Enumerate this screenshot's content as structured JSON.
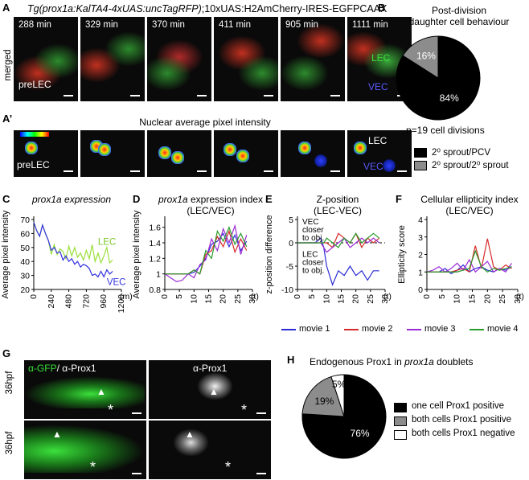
{
  "panelA": {
    "letter": "A",
    "title": "Tg(prox1a:KalTA4-4xUAS:uncTagRFP);10xUAS:H2AmCherry-IRES-EGFPCAAX",
    "title_italic_part": "Tg(prox1a:KalTA4-4xUAS:uncTagRFP)",
    "title_rest": ";10xUAS:H2AmCherry-IRES-EGFPCAAX",
    "row_label": "merged",
    "frames": [
      "288 min",
      "329 min",
      "370 min",
      "411 min",
      "905 min",
      "1111 min"
    ],
    "pre_label": "preLEC",
    "lec_label": "LEC",
    "vec_label": "VEC"
  },
  "panelA2": {
    "letter": "A’",
    "title": "Nuclear average pixel intensity",
    "pre_label": "preLEC",
    "lec_label": "LEC",
    "vec_label": "VEC"
  },
  "panelB": {
    "letter": "B",
    "title_line1": "Post-division",
    "title_line2": "daughter cell behaviour",
    "n_label": "n=19 cell divisions",
    "legend1": "2⁰ sprout/PCV",
    "legend2": "2⁰ sprout/2⁰ sprout",
    "color1": "#000000",
    "color2": "#8c8c8c"
  },
  "panelC": {
    "letter": "C",
    "title": "prox1a expression",
    "ylabel": "Average pixel intensity",
    "unit": "(m)",
    "lec": "LEC",
    "vec": "VEC"
  },
  "panelD": {
    "letter": "D",
    "title_italic": "prox1a",
    "title_rest": " expression index",
    "subtitle": "(LEC/VEC)",
    "ylabel": "Average pixel intensity",
    "unit": "(t)"
  },
  "panelE": {
    "letter": "E",
    "title": "Z-position",
    "subtitle": "(LEC-VEC)",
    "ylabel": "z-position difference",
    "unit": "(t)",
    "ann1_l1": "VEC",
    "ann1_l2": "closer",
    "ann1_l3": "to obj.",
    "ann2_l1": "LEC",
    "ann2_l2": "closer",
    "ann2_l3": "to obj."
  },
  "panelF": {
    "letter": "F",
    "title": "Cellular ellipticity index",
    "subtitle": "(LEC/VEC)",
    "ylabel": "Ellipticity score",
    "unit": "(t)"
  },
  "movie_legend": [
    "movie 1",
    "movie 2",
    "movie 3",
    "movie 4"
  ],
  "movie_colors": [
    "#2b2bd6",
    "#d62b2b",
    "#9b2bd6",
    "#2b9b2b"
  ],
  "panelG": {
    "letter": "G",
    "label_gfp": "α-GFP",
    "label_sep": "/ α-Prox1",
    "label_prox": "α-Prox1",
    "row_label": "36hpf",
    "star": "*",
    "arrow": "▲"
  },
  "panelH": {
    "letter": "H",
    "title_pre": "Endogenous Prox1 in ",
    "title_italic": "prox1a",
    "title_post": " doublets",
    "legend1": "one cell Prox1 positive",
    "legend2": "both cells Prox1 positive",
    "legend3": "both cells Prox1 negative"
  },
  "chart_data": [
    {
      "id": "B",
      "type": "pie",
      "categories": [
        "2⁰ sprout/PCV",
        "2⁰ sprout/2⁰ sprout"
      ],
      "values": [
        84,
        16
      ],
      "labels": [
        "84%",
        "16%"
      ]
    },
    {
      "id": "C",
      "type": "line",
      "title": "prox1a expression",
      "ylabel": "Average pixel intensity",
      "xlabel": "(m)",
      "xlim": [
        0,
        1200
      ],
      "ylim": [
        20,
        70
      ],
      "xticks": [
        0,
        240,
        480,
        720,
        960,
        1200
      ],
      "yticks": [
        20,
        30,
        40,
        50,
        60,
        70
      ],
      "x": [
        0,
        40,
        80,
        120,
        160,
        200,
        240,
        280,
        320,
        360,
        400,
        440,
        480,
        520,
        560,
        600,
        640,
        680,
        720,
        760,
        800,
        840,
        880,
        920,
        960,
        1000,
        1040,
        1080
      ],
      "series": [
        {
          "name": "LEC",
          "values": [
            68,
            62,
            58,
            66,
            60,
            55,
            45,
            52,
            45,
            49,
            47,
            42,
            51,
            44,
            50,
            43,
            46,
            41,
            48,
            42,
            52,
            40,
            46,
            39,
            44,
            50,
            39,
            41
          ]
        },
        {
          "name": "VEC",
          "values": [
            68,
            62,
            58,
            66,
            60,
            55,
            48,
            50,
            46,
            47,
            41,
            44,
            40,
            42,
            38,
            40,
            36,
            38,
            37,
            35,
            30,
            31,
            29,
            33,
            29,
            34,
            31,
            33
          ]
        }
      ]
    },
    {
      "id": "D",
      "type": "line",
      "title": "prox1a expression index (LEC/VEC)",
      "ylabel": "Average pixel intensity",
      "xlabel": "(t)",
      "xlim": [
        0,
        30
      ],
      "ylim": [
        0.8,
        1.7
      ],
      "xticks": [
        0,
        5,
        10,
        15,
        20,
        25,
        30
      ],
      "yticks": [
        0.8,
        1.0,
        1.2,
        1.4,
        1.6
      ],
      "series": [
        {
          "name": "movie 1",
          "x": [
            0,
            2,
            4,
            6,
            8,
            10,
            12,
            14,
            16,
            18,
            20,
            22,
            24,
            26,
            28
          ],
          "values": [
            1,
            1,
            1,
            1,
            1,
            1.02,
            1.1,
            1.2,
            1.38,
            1.42,
            1.52,
            1.35,
            1.5,
            1.3,
            1.42
          ]
        },
        {
          "name": "movie 2",
          "x": [
            0,
            2,
            4,
            6,
            8,
            10,
            12,
            14,
            16,
            18,
            20,
            22,
            24,
            26,
            28
          ],
          "values": [
            1,
            1,
            1,
            1,
            1,
            1.05,
            1.0,
            1.25,
            1.3,
            1.48,
            1.35,
            1.55,
            1.28,
            1.45,
            1.3
          ]
        },
        {
          "name": "movie 3",
          "x": [
            0,
            2,
            4,
            6,
            8,
            10,
            12,
            14,
            16,
            18,
            20,
            22,
            24,
            26,
            28
          ],
          "values": [
            1,
            0.95,
            0.9,
            0.92,
            1.0,
            0.95,
            1.12,
            1.18,
            1.45,
            1.3,
            1.58,
            1.4,
            1.62,
            1.25,
            1.5
          ]
        },
        {
          "name": "movie 4",
          "x": [
            0,
            2,
            4,
            6,
            8,
            10,
            12,
            14,
            16,
            18,
            20,
            22,
            24,
            26,
            28
          ],
          "values": [
            1,
            1,
            1,
            1,
            1,
            1.05,
            1.0,
            1.3,
            1.2,
            1.55,
            1.42,
            1.6,
            1.38,
            1.52,
            1.35
          ]
        }
      ]
    },
    {
      "id": "E",
      "type": "line",
      "title": "Z-position (LEC-VEC)",
      "ylabel": "z-position difference",
      "xlabel": "(t)",
      "xlim": [
        0,
        30
      ],
      "ylim": [
        -10,
        5
      ],
      "xticks": [
        0,
        5,
        10,
        15,
        20,
        25,
        30
      ],
      "yticks": [
        -10,
        -5,
        0,
        5
      ],
      "series": [
        {
          "name": "movie 1",
          "x": [
            0,
            2,
            4,
            6,
            8,
            9,
            10,
            12,
            14,
            16,
            18,
            20,
            22,
            24,
            26,
            28
          ],
          "values": [
            0,
            0,
            0,
            0,
            1,
            -1,
            -5,
            -9,
            -6,
            -7,
            -5,
            -7,
            -6,
            -8,
            -6,
            -6
          ]
        },
        {
          "name": "movie 2",
          "x": [
            0,
            2,
            4,
            6,
            8,
            9,
            10,
            12,
            14,
            16,
            18,
            20,
            22,
            24,
            26,
            28
          ],
          "values": [
            0,
            0,
            0,
            0,
            0,
            0,
            0,
            -1,
            2,
            1,
            0,
            2,
            -1,
            1,
            0,
            1
          ]
        },
        {
          "name": "movie 3",
          "x": [
            0,
            2,
            4,
            6,
            8,
            9,
            10,
            12,
            14,
            16,
            18,
            20,
            22,
            24,
            26,
            28
          ],
          "values": [
            0,
            0,
            0,
            0,
            0,
            -1,
            -2,
            -1,
            0,
            1,
            -1,
            0,
            1,
            0,
            1,
            0
          ]
        },
        {
          "name": "movie 4",
          "x": [
            0,
            2,
            4,
            6,
            8,
            9,
            10,
            12,
            14,
            16,
            18,
            20,
            22,
            24,
            26,
            28
          ],
          "values": [
            0,
            0,
            0,
            0,
            0,
            0,
            1,
            0,
            -1,
            1,
            0,
            2,
            0,
            1,
            2,
            1
          ]
        }
      ]
    },
    {
      "id": "F",
      "type": "line",
      "title": "Cellular ellipticity index (LEC/VEC)",
      "ylabel": "Ellipticity score",
      "xlabel": "(t)",
      "xlim": [
        0,
        30
      ],
      "ylim": [
        0,
        4
      ],
      "xticks": [
        0,
        5,
        10,
        15,
        20,
        25,
        30
      ],
      "yticks": [
        0,
        1,
        2,
        3,
        4
      ],
      "series": [
        {
          "name": "movie 1",
          "x": [
            0,
            2,
            4,
            6,
            8,
            10,
            12,
            14,
            16,
            18,
            20,
            22,
            24,
            26,
            28
          ],
          "values": [
            1,
            1,
            1,
            1.2,
            0.9,
            1.1,
            1.4,
            1.0,
            1.2,
            1.3,
            1.1,
            1.0,
            1.2,
            1.1,
            1.3
          ]
        },
        {
          "name": "movie 2",
          "x": [
            0,
            2,
            4,
            6,
            8,
            10,
            12,
            14,
            16,
            18,
            20,
            22,
            24,
            26,
            28
          ],
          "values": [
            1,
            1,
            1,
            1,
            1,
            1.1,
            1.2,
            1.0,
            2.5,
            1.2,
            2.9,
            1.3,
            1.1,
            1.4,
            1.2
          ]
        },
        {
          "name": "movie 3",
          "x": [
            0,
            2,
            4,
            6,
            8,
            10,
            12,
            14,
            16,
            18,
            20,
            22,
            24,
            26,
            28
          ],
          "values": [
            1,
            1.1,
            1.3,
            1.0,
            1.2,
            1.5,
            1.1,
            1.7,
            1.0,
            1.3,
            1.6,
            1.0,
            1.2,
            1.0,
            1.5
          ]
        },
        {
          "name": "movie 4",
          "x": [
            0,
            2,
            4,
            6,
            8,
            10,
            12,
            14,
            16,
            18,
            20,
            22,
            24,
            26,
            28
          ],
          "values": [
            1,
            1,
            1,
            1,
            1,
            1.0,
            1.1,
            1.2,
            2.2,
            1.3,
            1.0,
            1.2,
            1.1,
            1.2,
            1.3
          ]
        }
      ]
    },
    {
      "id": "H",
      "type": "pie",
      "categories": [
        "one cell Prox1 positive",
        "both cells Prox1 positive",
        "both cells Prox1 negative"
      ],
      "values": [
        76,
        19,
        5
      ],
      "labels": [
        "76%",
        "19%",
        "5%"
      ]
    }
  ]
}
